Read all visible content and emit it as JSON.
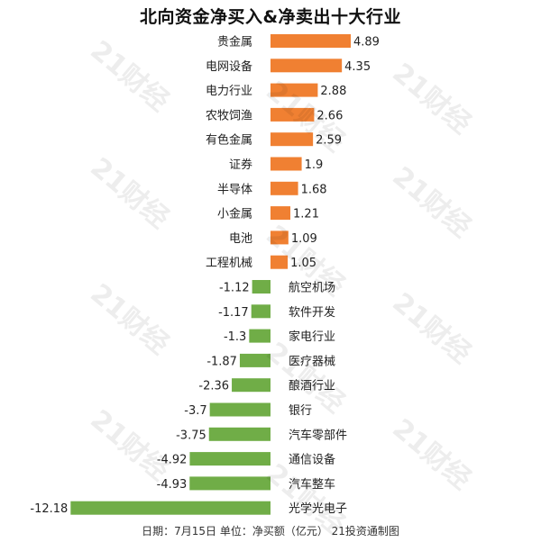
{
  "title": "北向资金净买入&净卖出十大行业",
  "footer": "日期：7月15日 单位：净买额（亿元） 21投资通制图",
  "watermark": "21财经",
  "colors": {
    "positive": "#f08032",
    "negative": "#70ad47"
  },
  "chart_data": {
    "type": "bar",
    "orientation": "horizontal",
    "title": "北向资金净买入&净卖出十大行业",
    "categories": [
      "贵金属",
      "电网设备",
      "电力行业",
      "农牧饲渔",
      "有色金属",
      "证券",
      "半导体",
      "小金属",
      "电池",
      "工程机械",
      "航空机场",
      "软件开发",
      "家电行业",
      "医疗器械",
      "酿酒行业",
      "银行",
      "汽车零部件",
      "通信设备",
      "汽车整车",
      "光学光电子"
    ],
    "values": [
      4.89,
      4.35,
      2.88,
      2.66,
      2.59,
      1.9,
      1.68,
      1.21,
      1.09,
      1.05,
      -1.12,
      -1.17,
      -1.3,
      -1.87,
      -2.36,
      -3.7,
      -3.75,
      -4.92,
      -4.93,
      -12.18
    ],
    "value_labels": [
      "4.89",
      "4.35",
      "2.88",
      "2.66",
      "2.59",
      "1.9",
      "1.68",
      "1.21",
      "1.09",
      "1.05",
      "-1.12",
      "-1.17",
      "-1.3",
      "-1.87",
      "-2.36",
      "-3.7",
      "-3.75",
      "-4.92",
      "-4.93",
      "-12.18"
    ],
    "xlim": [
      -12.18,
      4.89
    ],
    "grid": false,
    "legend": "none"
  }
}
